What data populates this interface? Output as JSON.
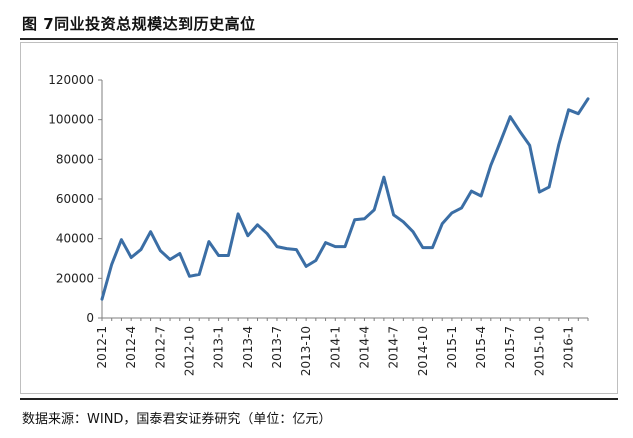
{
  "figure": {
    "title": "图  7同业投资总规模达到历史高位",
    "source": "数据来源：WIND，国泰君安证券研究（单位：亿元）"
  },
  "chart_data": {
    "type": "line",
    "title": "图  7同业投资总规模达到历史高位",
    "xlabel": "",
    "ylabel": "",
    "ylim": [
      0,
      120000
    ],
    "yticks": [
      0,
      20000,
      40000,
      60000,
      80000,
      100000,
      120000
    ],
    "grid": false,
    "legend": "none",
    "line_color": "#3b6ea5",
    "x": [
      "2012-1",
      "2012-2",
      "2012-3",
      "2012-4",
      "2012-5",
      "2012-6",
      "2012-7",
      "2012-8",
      "2012-9",
      "2012-10",
      "2012-11",
      "2012-12",
      "2013-1",
      "2013-2",
      "2013-3",
      "2013-4",
      "2013-5",
      "2013-6",
      "2013-7",
      "2013-8",
      "2013-9",
      "2013-10",
      "2013-11",
      "2013-12",
      "2014-1",
      "2014-2",
      "2014-3",
      "2014-4",
      "2014-5",
      "2014-6",
      "2014-7",
      "2014-8",
      "2014-9",
      "2014-10",
      "2014-11",
      "2014-12",
      "2015-1",
      "2015-2",
      "2015-3",
      "2015-4",
      "2015-5",
      "2015-6",
      "2015-7",
      "2015-8",
      "2015-9",
      "2015-10",
      "2015-11",
      "2015-12",
      "2016-1",
      "2016-2",
      "2016-3"
    ],
    "xtick_labels": [
      "2012-1",
      "2012-4",
      "2012-7",
      "2012-10",
      "2013-1",
      "2013-4",
      "2013-7",
      "2013-10",
      "2014-1",
      "2014-4",
      "2014-7",
      "2014-10",
      "2015-1",
      "2015-4",
      "2015-7",
      "2015-10",
      "2016-1"
    ],
    "series": [
      {
        "values": [
          9500,
          27000,
          39500,
          30500,
          34500,
          43500,
          34000,
          29500,
          32500,
          21000,
          22000,
          38500,
          31500,
          31500,
          52500,
          41500,
          47000,
          42500,
          36000,
          35000,
          34500,
          26000,
          29000,
          38000,
          36000,
          36000,
          49500,
          50000,
          54500,
          71000,
          52000,
          48500,
          43500,
          35500,
          35500,
          47500,
          53000,
          55500,
          64000,
          61500,
          77000,
          89000,
          101500,
          94000,
          87000,
          63500,
          66000,
          87500,
          105000,
          103000,
          110500
        ]
      }
    ]
  }
}
